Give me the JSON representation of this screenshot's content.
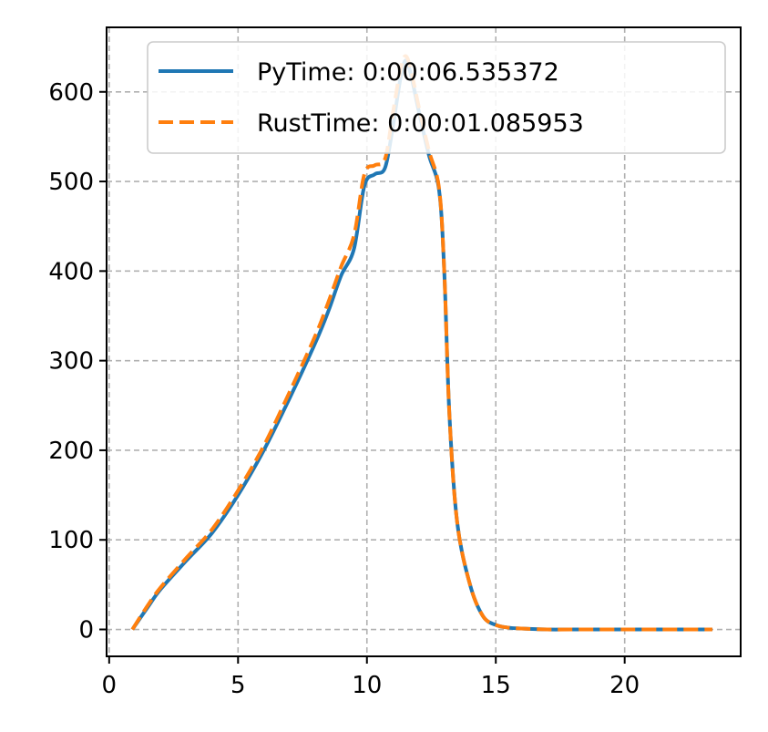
{
  "chart_data": {
    "type": "line",
    "title": "",
    "xlabel": "",
    "ylabel": "",
    "xlim": [
      -0.1,
      24.5
    ],
    "ylim": [
      -30,
      672
    ],
    "xticks": [
      0,
      5,
      10,
      15,
      20
    ],
    "yticks": [
      0,
      100,
      200,
      300,
      400,
      500,
      600
    ],
    "grid": true,
    "legend_position": "upper right",
    "series": [
      {
        "name": "PyTime: 0:00:06.535372",
        "color": "#1f77b4",
        "style": "solid",
        "x": [
          0.9,
          1.5,
          2,
          3,
          4,
          5,
          6,
          7,
          8,
          8.5,
          9,
          9.5,
          9.9,
          10.3,
          10.7,
          11,
          11.3,
          11.5,
          11.7,
          12,
          12.4,
          12.8,
          13,
          13.2,
          13.5,
          14,
          14.5,
          15,
          15.5,
          16,
          17,
          18,
          20,
          22,
          23.4
        ],
        "y": [
          0,
          25,
          45,
          77,
          108,
          150,
          200,
          258,
          320,
          355,
          395,
          425,
          495,
          508,
          515,
          560,
          615,
          635,
          620,
          580,
          530,
          490,
          400,
          240,
          120,
          50,
          15,
          5,
          2,
          1,
          0,
          0,
          0,
          0,
          0
        ]
      },
      {
        "name": "RustTime: 0:00:01.085953",
        "color": "#ff7f0e",
        "style": "dashed",
        "x": [
          0.9,
          1.5,
          2,
          3,
          4,
          5,
          6,
          7,
          8,
          8.5,
          9,
          9.5,
          9.9,
          10.3,
          10.7,
          11,
          11.3,
          11.5,
          11.7,
          12,
          12.4,
          12.8,
          13,
          13.2,
          13.5,
          14,
          14.5,
          15,
          15.5,
          16,
          17,
          18,
          20,
          22,
          23.4
        ],
        "y": [
          0,
          27,
          47,
          80,
          112,
          155,
          205,
          265,
          328,
          365,
          405,
          440,
          508,
          518,
          525,
          575,
          625,
          640,
          625,
          585,
          535,
          492,
          400,
          240,
          120,
          50,
          15,
          5,
          2,
          1,
          0,
          0,
          0,
          0,
          0
        ]
      }
    ]
  }
}
